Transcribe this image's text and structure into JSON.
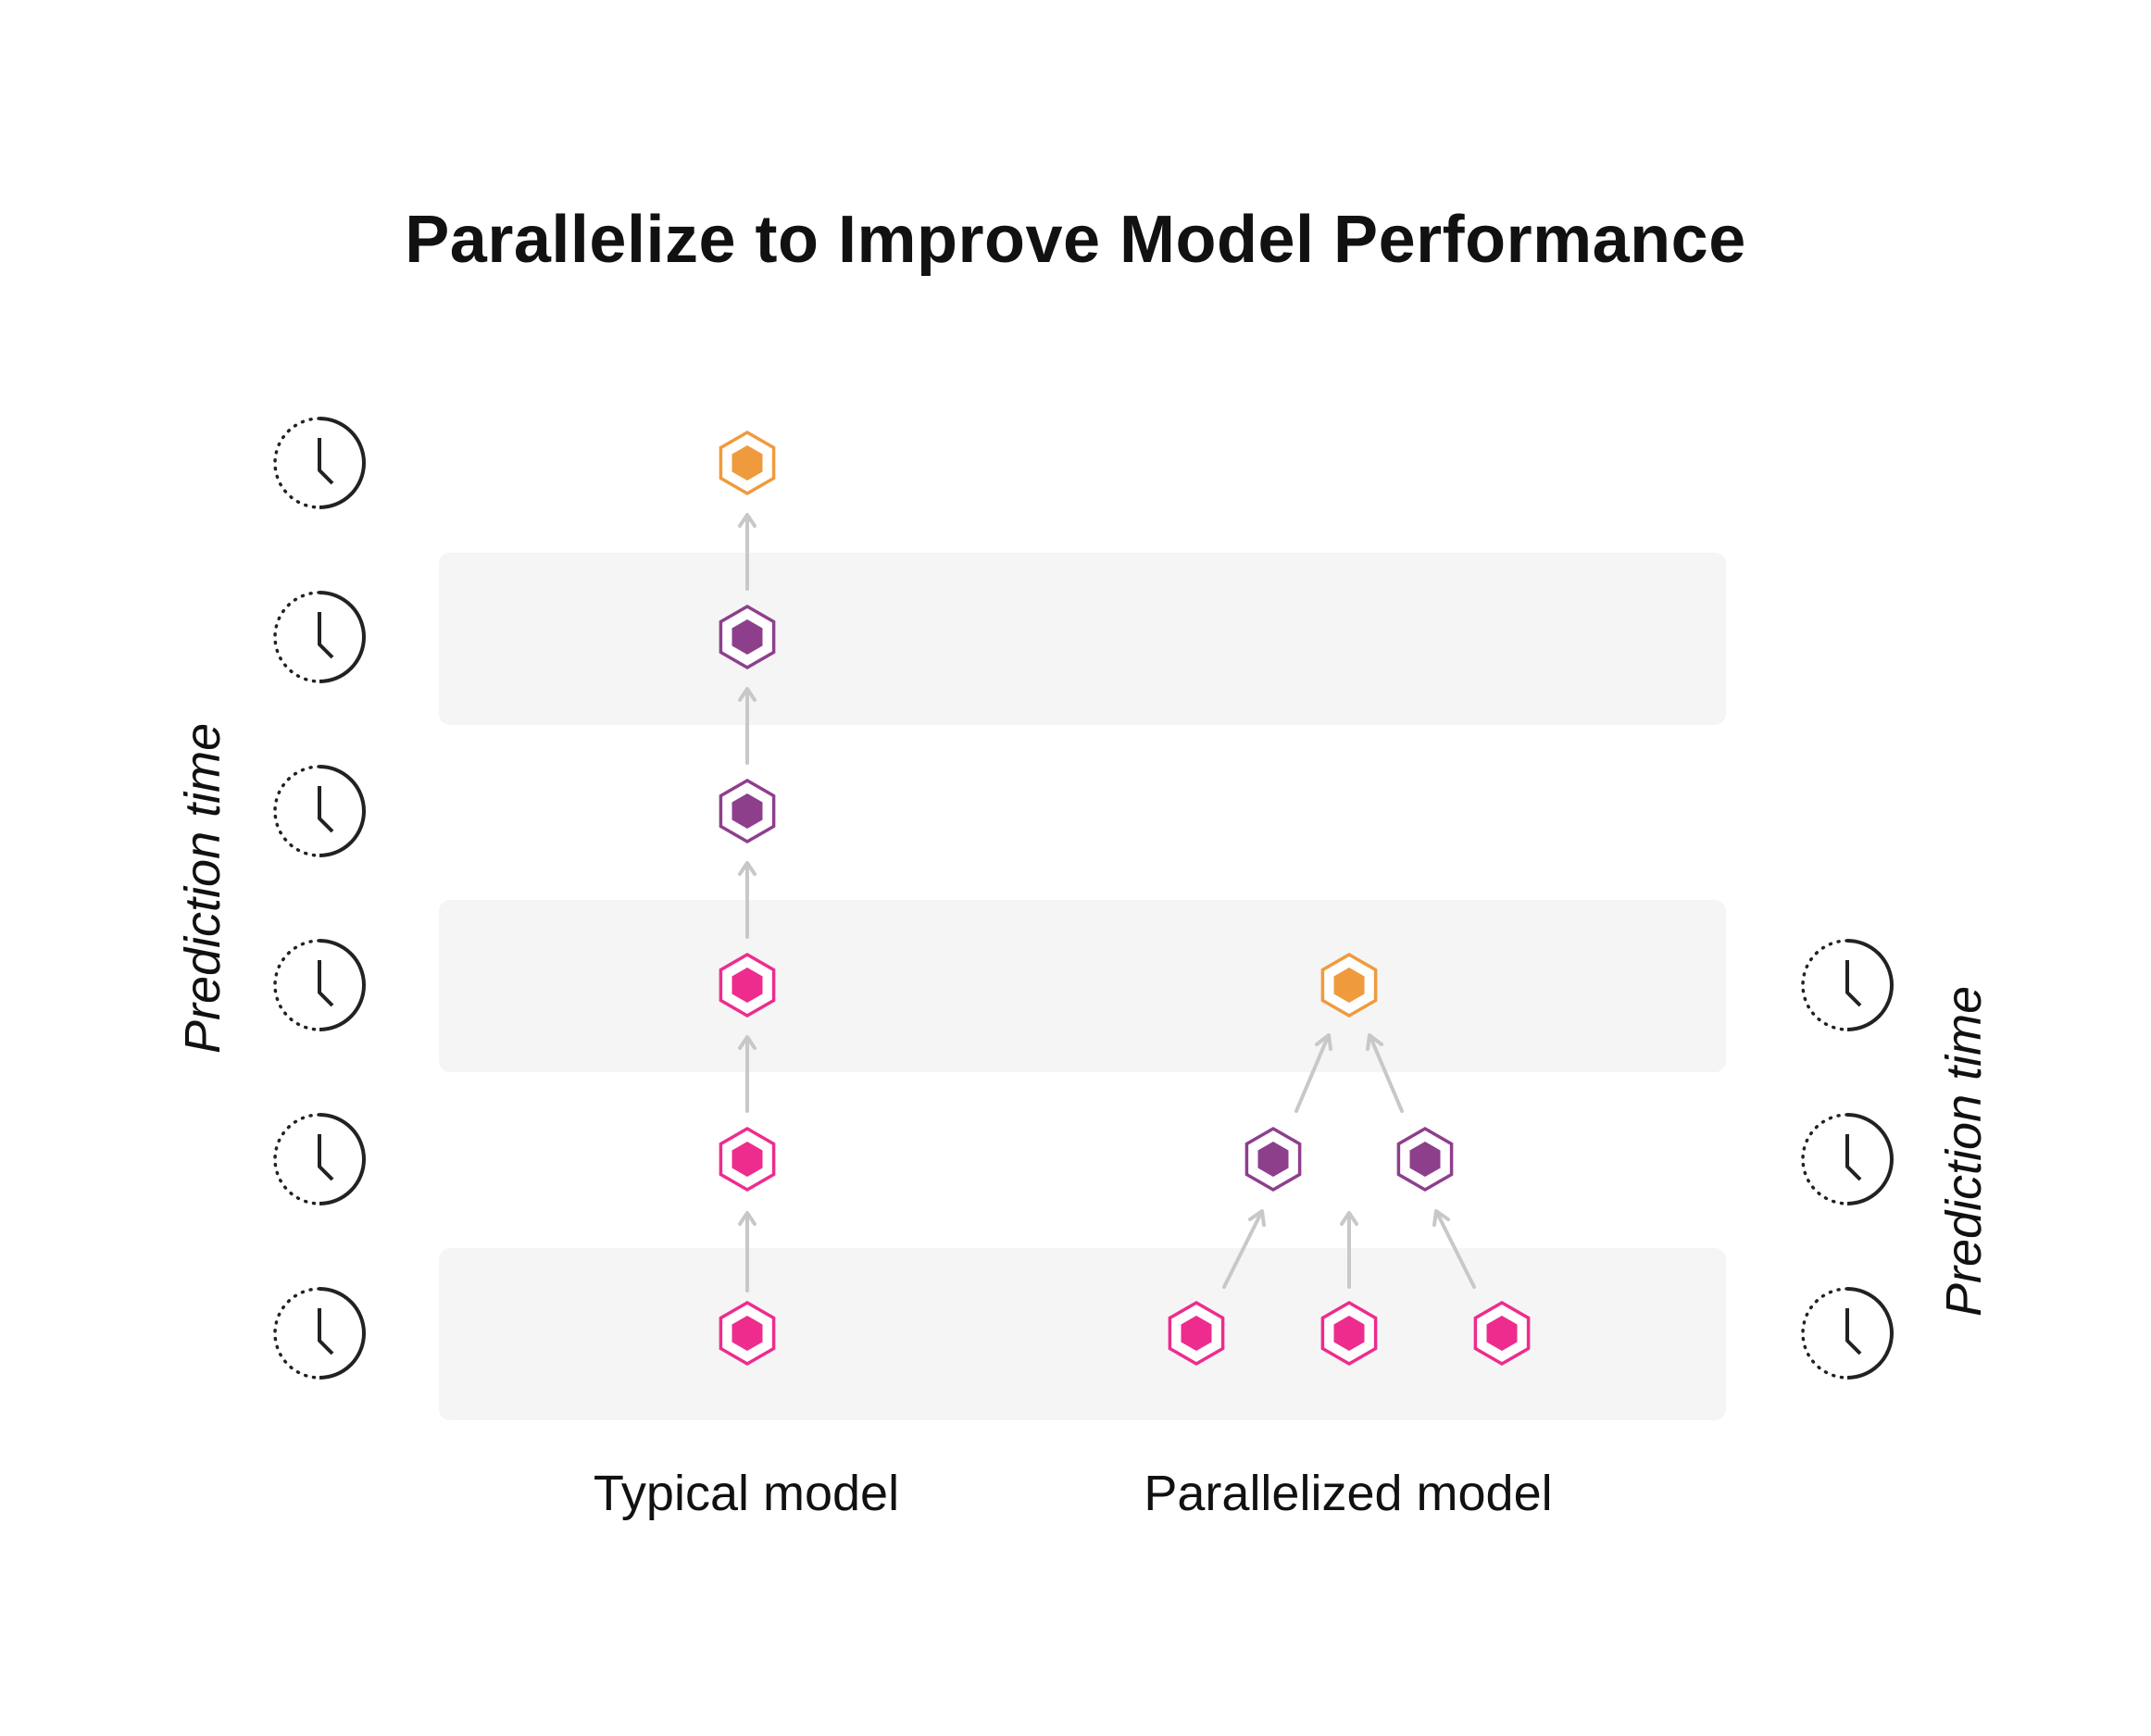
{
  "title": "Parallelize to Improve Model Performance",
  "axis_label_left": "Prediction time",
  "axis_label_right": "Prediction time",
  "models": [
    {
      "label": "Typical model"
    },
    {
      "label": "Parallelized model"
    }
  ],
  "colors": {
    "orange": "#f09a3e",
    "purple": "#8e3f8c",
    "pink": "#ee2c8e",
    "band": "#f5f5f5",
    "arrow": "#c8c8c8",
    "clock": "#222222"
  },
  "icons": [
    "clock-icon",
    "hexagon-node-icon",
    "arrow-up-icon"
  ]
}
